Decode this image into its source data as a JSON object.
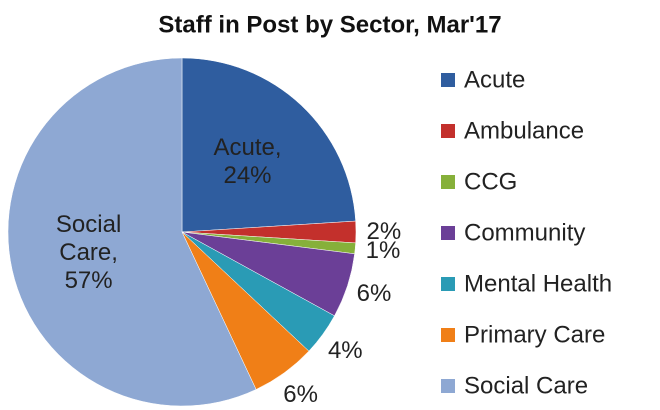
{
  "chart_data": {
    "type": "pie",
    "title": "Staff in Post by Sector, Mar'17",
    "categories": [
      "Acute",
      "Ambulance",
      "CCG",
      "Community",
      "Mental Health",
      "Primary Care",
      "Social Care"
    ],
    "values": [
      24,
      2,
      1,
      6,
      4,
      6,
      57
    ],
    "value_labels": [
      "Acute, 24%",
      "2%",
      "1%",
      "6%",
      "4%",
      "6%",
      "Social Care, 57%"
    ],
    "colors": [
      "#2f5d9f",
      "#c3302c",
      "#86b03a",
      "#6b3f97",
      "#2a9bb5",
      "#f07f17",
      "#8ea8d3"
    ],
    "legend": "right"
  }
}
